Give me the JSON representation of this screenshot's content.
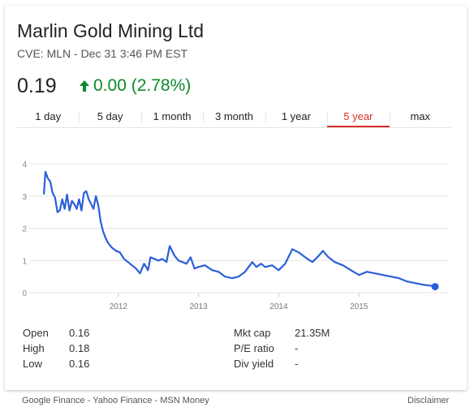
{
  "header": {
    "name": "Marlin Gold Mining Ltd",
    "subtitle": "CVE: MLN - Dec 31 3:46 PM EST",
    "price": "0.19",
    "change": "0.00 (2.78%)"
  },
  "tabs": [
    {
      "label": "1 day"
    },
    {
      "label": "5 day"
    },
    {
      "label": "1 month"
    },
    {
      "label": "3 month"
    },
    {
      "label": "1 year"
    },
    {
      "label": "5 year",
      "active": true
    },
    {
      "label": "max"
    }
  ],
  "stats": {
    "left": [
      {
        "label": "Open",
        "value": "0.16"
      },
      {
        "label": "High",
        "value": "0.18"
      },
      {
        "label": "Low",
        "value": "0.16"
      }
    ],
    "right": [
      {
        "label": "Mkt cap",
        "value": "21.35M"
      },
      {
        "label": "P/E ratio",
        "value": "-"
      },
      {
        "label": "Div yield",
        "value": "-"
      }
    ]
  },
  "footer": {
    "sources": "Google Finance - Yahoo Finance - MSN Money",
    "disclaimer": "Disclaimer"
  },
  "colors": {
    "line": "#2b5fd9",
    "positive": "#0a8a2a",
    "active_tab": "#d93025",
    "grid": "#e6e6e6"
  },
  "icons": {
    "change": "up-arrow-icon"
  },
  "chart_data": {
    "type": "line",
    "title": "",
    "xlabel": "",
    "ylabel": "",
    "ylim": [
      0,
      4
    ],
    "xlim": [
      2011.05,
      2016.0
    ],
    "yticks": [
      "0",
      "1",
      "2",
      "3",
      "4"
    ],
    "xticks": [
      {
        "label": "2012",
        "value": 2012
      },
      {
        "label": "2013",
        "value": 2013
      },
      {
        "label": "2014",
        "value": 2014
      },
      {
        "label": "2015",
        "value": 2015
      }
    ],
    "grid": true,
    "series": [
      {
        "x": [
          2011.07,
          2011.09,
          2011.12,
          2011.15,
          2011.18,
          2011.21,
          2011.24,
          2011.27,
          2011.3,
          2011.33,
          2011.36,
          2011.39,
          2011.42,
          2011.45,
          2011.48,
          2011.51,
          2011.54,
          2011.57,
          2011.6,
          2011.63,
          2011.66,
          2011.69,
          2011.72,
          2011.75,
          2011.78,
          2011.81,
          2011.84,
          2011.87,
          2011.92,
          2011.97,
          2012.02,
          2012.07,
          2012.12,
          2012.17,
          2012.22,
          2012.27,
          2012.32,
          2012.37,
          2012.4,
          2012.45,
          2012.5,
          2012.55,
          2012.6,
          2012.64,
          2012.7,
          2012.75,
          2012.8,
          2012.85,
          2012.9,
          2012.95,
          2013.0,
          2013.08,
          2013.17,
          2013.25,
          2013.33,
          2013.42,
          2013.5,
          2013.58,
          2013.67,
          2013.72,
          2013.78,
          2013.83,
          2013.92,
          2014.0,
          2014.08,
          2014.17,
          2014.25,
          2014.33,
          2014.42,
          2014.5,
          2014.55,
          2014.62,
          2014.7,
          2014.8,
          2014.9,
          2015.0,
          2015.1,
          2015.2,
          2015.3,
          2015.4,
          2015.5,
          2015.6,
          2015.7,
          2015.8,
          2015.9,
          2015.95
        ],
        "y": [
          3.05,
          3.75,
          3.55,
          3.45,
          3.1,
          2.95,
          2.5,
          2.55,
          2.9,
          2.6,
          3.05,
          2.55,
          2.85,
          2.75,
          2.6,
          2.9,
          2.55,
          3.1,
          3.15,
          2.9,
          2.75,
          2.6,
          3.0,
          2.7,
          2.2,
          1.9,
          1.7,
          1.55,
          1.4,
          1.3,
          1.25,
          1.05,
          0.95,
          0.85,
          0.75,
          0.6,
          0.9,
          0.7,
          1.1,
          1.05,
          1.0,
          1.05,
          0.95,
          1.45,
          1.15,
          1.0,
          0.95,
          0.9,
          1.1,
          0.75,
          0.8,
          0.85,
          0.7,
          0.65,
          0.5,
          0.45,
          0.5,
          0.65,
          0.95,
          0.8,
          0.9,
          0.8,
          0.85,
          0.7,
          0.9,
          1.35,
          1.25,
          1.1,
          0.95,
          1.15,
          1.3,
          1.1,
          0.95,
          0.85,
          0.7,
          0.55,
          0.65,
          0.6,
          0.55,
          0.5,
          0.45,
          0.35,
          0.3,
          0.25,
          0.22,
          0.19
        ]
      }
    ]
  }
}
